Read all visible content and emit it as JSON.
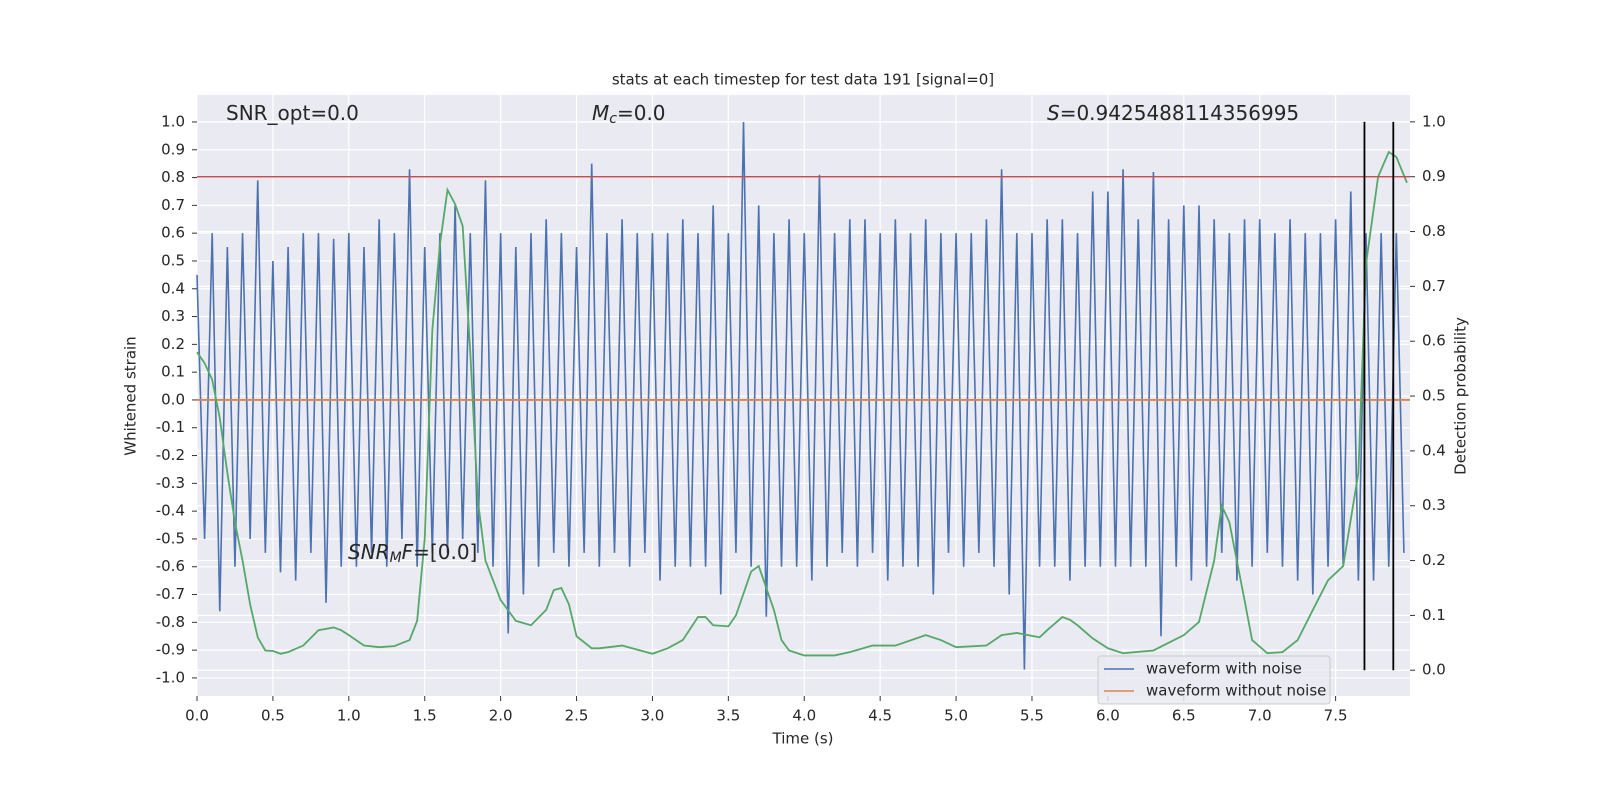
{
  "chart_data": {
    "type": "line",
    "title": "stats at each timestep for test data 191 [signal=0]",
    "xlabel": "Time (s)",
    "ylabel": "Whitened strain",
    "y2label": "Detection probability",
    "xlim": [
      0,
      7.99
    ],
    "ylim": [
      -1.065,
      1.097
    ],
    "y2lim": [
      -0.047,
      1.049
    ],
    "xticks": [
      {
        "value": 0,
        "label": "0.0"
      },
      0.5,
      {
        "value": 1,
        "label": "1.0"
      },
      1.5,
      {
        "value": 2,
        "label": "2.0"
      },
      2.5,
      {
        "value": 3,
        "label": "3.0"
      },
      3.5,
      {
        "value": 4,
        "label": "4.0"
      },
      4.5,
      {
        "value": 5,
        "label": "5.0"
      },
      5.5,
      {
        "value": 6,
        "label": "6.0"
      },
      6.5,
      {
        "value": 7,
        "label": "7.0"
      },
      7.5
    ],
    "yticks": [
      {
        "value": 1,
        "label": "1.0"
      },
      0.9,
      0.8,
      0.7,
      0.6,
      0.5,
      0.4,
      0.3,
      0.2,
      0.1,
      {
        "value": 0,
        "label": "0.0"
      },
      -0.1,
      -0.2,
      -0.3,
      -0.4,
      -0.5,
      -0.6,
      -0.7,
      -0.8,
      -0.9,
      {
        "value": -1,
        "label": "-1.0"
      }
    ],
    "y2ticks": [
      {
        "value": 0,
        "label": "0.0"
      },
      0.1,
      0.2,
      0.3,
      0.4,
      0.5,
      0.6,
      0.7,
      0.8,
      0.9,
      {
        "value": 1,
        "label": "1.0"
      }
    ],
    "grid": true,
    "legend": "lower right",
    "series": [
      {
        "name": "waveform with noise",
        "color": "#4c72b0",
        "x": [
          0,
          0.05,
          0.1,
          0.15,
          0.2,
          0.25,
          0.3,
          0.35,
          0.4,
          0.45,
          0.5,
          0.55,
          0.6,
          0.65,
          0.7,
          0.75,
          0.8,
          0.85,
          0.9,
          0.95,
          1,
          1.05,
          1.1,
          1.15,
          1.2,
          1.25,
          1.3,
          1.35,
          1.4,
          1.45,
          1.5,
          1.55,
          1.6,
          1.65,
          1.7,
          1.75,
          1.8,
          1.85,
          1.9,
          1.95,
          2,
          2.05,
          2.1,
          2.15,
          2.2,
          2.25,
          2.3,
          2.35,
          2.4,
          2.45,
          2.5,
          2.55,
          2.6,
          2.65,
          2.7,
          2.75,
          2.8,
          2.85,
          2.9,
          2.95,
          3,
          3.05,
          3.1,
          3.15,
          3.2,
          3.25,
          3.3,
          3.35,
          3.4,
          3.45,
          3.5,
          3.55,
          3.6,
          3.65,
          3.7,
          3.75,
          3.8,
          3.85,
          3.9,
          3.95,
          4,
          4.05,
          4.1,
          4.15,
          4.2,
          4.25,
          4.3,
          4.35,
          4.4,
          4.45,
          4.5,
          4.55,
          4.6,
          4.65,
          4.7,
          4.75,
          4.8,
          4.85,
          4.9,
          4.95,
          5,
          5.05,
          5.1,
          5.15,
          5.2,
          5.25,
          5.3,
          5.35,
          5.4,
          5.45,
          5.5,
          5.55,
          5.6,
          5.65,
          5.7,
          5.75,
          5.8,
          5.85,
          5.9,
          5.95,
          6,
          6.05,
          6.1,
          6.15,
          6.2,
          6.25,
          6.3,
          6.35,
          6.4,
          6.45,
          6.5,
          6.55,
          6.6,
          6.65,
          6.7,
          6.75,
          6.8,
          6.85,
          6.9,
          6.95,
          7,
          7.05,
          7.1,
          7.15,
          7.2,
          7.25,
          7.3,
          7.35,
          7.4,
          7.45,
          7.5,
          7.55,
          7.6,
          7.65,
          7.7,
          7.75,
          7.8,
          7.85,
          7.9,
          7.95
        ],
        "values": [
          0.45,
          -0.5,
          0.6,
          -0.76,
          0.55,
          -0.6,
          0.6,
          -0.5,
          0.79,
          -0.55,
          0.5,
          -0.62,
          0.55,
          -0.65,
          0.6,
          -0.55,
          0.6,
          -0.73,
          0.58,
          -0.6,
          0.6,
          -0.6,
          0.55,
          -0.55,
          0.65,
          -0.6,
          0.6,
          -0.5,
          0.83,
          -0.6,
          0.55,
          -0.55,
          0.6,
          -0.55,
          0.7,
          -0.5,
          0.6,
          -0.55,
          0.79,
          -0.6,
          0.6,
          -0.84,
          0.55,
          -0.7,
          0.6,
          -0.6,
          0.65,
          -0.55,
          0.6,
          -0.6,
          0.55,
          -0.55,
          0.85,
          -0.6,
          0.6,
          -0.55,
          0.65,
          -0.6,
          0.6,
          -0.55,
          0.6,
          -0.65,
          0.6,
          -0.6,
          0.65,
          -0.6,
          0.6,
          -0.6,
          0.7,
          -0.7,
          0.6,
          -0.55,
          1.0,
          -0.6,
          0.7,
          -0.78,
          0.6,
          -0.6,
          0.65,
          -0.6,
          0.6,
          -0.65,
          0.81,
          -0.6,
          0.6,
          -0.55,
          0.65,
          -0.6,
          0.65,
          -0.55,
          0.6,
          -0.65,
          0.65,
          -0.6,
          0.6,
          -0.6,
          0.65,
          -0.7,
          0.6,
          -0.55,
          0.6,
          -0.6,
          0.6,
          -0.55,
          0.65,
          -0.6,
          0.83,
          -0.7,
          0.6,
          -0.97,
          0.6,
          -0.6,
          0.65,
          -0.6,
          0.65,
          -0.65,
          0.6,
          -0.6,
          0.75,
          -0.6,
          0.75,
          -0.6,
          0.83,
          -0.6,
          0.65,
          -0.6,
          0.82,
          -0.85,
          0.65,
          -0.6,
          0.7,
          -0.65,
          0.7,
          -0.6,
          0.65,
          -0.55,
          0.6,
          -0.65,
          0.65,
          -0.6,
          0.65,
          -0.55,
          0.6,
          -0.6,
          0.65,
          -0.65,
          0.6,
          -0.7,
          0.6,
          -0.6,
          0.65,
          -0.6,
          0.75,
          -0.65,
          0.6,
          -0.65,
          0.6,
          -0.6,
          0.6,
          -0.55
        ]
      },
      {
        "name": "waveform without noise",
        "color": "#dd8452",
        "x": [
          0,
          7.99
        ],
        "values": [
          0,
          0
        ]
      },
      {
        "color": "#55a868",
        "axis": "y2",
        "x": [
          0,
          0.05,
          0.1,
          0.15,
          0.2,
          0.25,
          0.3,
          0.35,
          0.4,
          0.45,
          0.5,
          0.55,
          0.6,
          0.7,
          0.8,
          0.9,
          0.95,
          1,
          1.1,
          1.2,
          1.3,
          1.4,
          1.45,
          1.5,
          1.55,
          1.6,
          1.65,
          1.7,
          1.75,
          1.8,
          1.85,
          1.9,
          2,
          2.1,
          2.2,
          2.3,
          2.35,
          2.4,
          2.45,
          2.5,
          2.6,
          2.65,
          2.8,
          3,
          3.1,
          3.2,
          3.3,
          3.35,
          3.4,
          3.5,
          3.55,
          3.65,
          3.7,
          3.8,
          3.85,
          3.9,
          4,
          4.2,
          4.3,
          4.45,
          4.6,
          4.8,
          4.9,
          5,
          5.2,
          5.3,
          5.4,
          5.55,
          5.6,
          5.7,
          5.75,
          5.8,
          5.9,
          6,
          6.1,
          6.3,
          6.5,
          6.6,
          6.7,
          6.75,
          6.8,
          6.9,
          6.95,
          7.05,
          7.15,
          7.25,
          7.35,
          7.45,
          7.55,
          7.65,
          7.7,
          7.78,
          7.85,
          7.9,
          7.97
        ],
        "values": [
          0.58,
          0.56,
          0.53,
          0.46,
          0.36,
          0.27,
          0.2,
          0.12,
          0.06,
          0.036,
          0.035,
          0.03,
          0.033,
          0.045,
          0.073,
          0.078,
          0.073,
          0.064,
          0.045,
          0.042,
          0.044,
          0.055,
          0.09,
          0.24,
          0.62,
          0.776,
          0.876,
          0.85,
          0.81,
          0.58,
          0.31,
          0.2,
          0.128,
          0.09,
          0.082,
          0.11,
          0.146,
          0.15,
          0.12,
          0.062,
          0.04,
          0.04,
          0.045,
          0.03,
          0.04,
          0.055,
          0.097,
          0.097,
          0.082,
          0.08,
          0.1,
          0.18,
          0.19,
          0.11,
          0.055,
          0.036,
          0.027,
          0.027,
          0.033,
          0.045,
          0.045,
          0.064,
          0.055,
          0.042,
          0.045,
          0.064,
          0.068,
          0.06,
          0.073,
          0.097,
          0.092,
          0.082,
          0.058,
          0.04,
          0.031,
          0.036,
          0.064,
          0.088,
          0.2,
          0.3,
          0.27,
          0.128,
          0.055,
          0.031,
          0.033,
          0.055,
          0.11,
          0.164,
          0.19,
          0.36,
          0.74,
          0.9,
          0.945,
          0.936,
          0.889
        ]
      }
    ],
    "hline": {
      "value": 0.9,
      "axis": "y2",
      "color": "#c44e52"
    },
    "vlines": {
      "x": [
        7.69,
        7.88
      ],
      "ymin": 0,
      "ymax": 1,
      "axis": "y2",
      "color": "#000000"
    },
    "annotations": [
      {
        "text": "SNR_opt=0.0"
      },
      {
        "italic": "M",
        "sub": "c",
        "text": "=0.0"
      },
      {
        "italic": "S",
        "text": "=0.9425488114356995"
      },
      {
        "italic": "SNR",
        "sub": "M",
        "italic2": "F",
        "text": "=[0.0]"
      }
    ]
  }
}
